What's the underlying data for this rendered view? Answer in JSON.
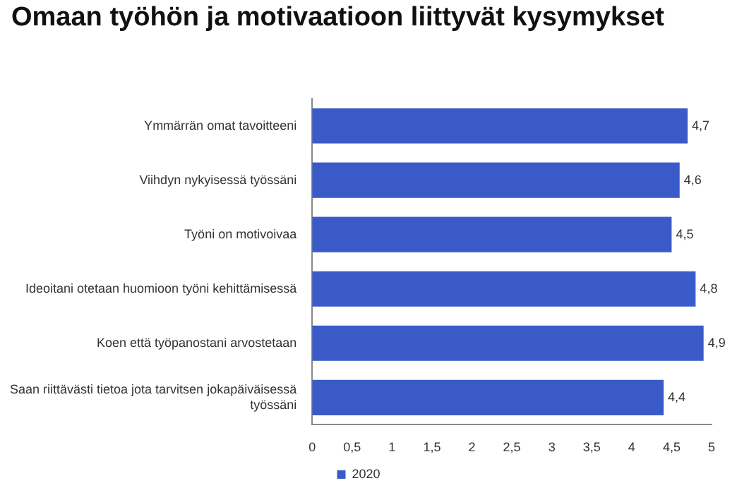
{
  "chart_data": {
    "type": "bar",
    "orientation": "horizontal",
    "title": "Omaan työhön ja motivaatioon liittyvät kysymykset",
    "categories": [
      "Ymmärrän omat tavoitteeni",
      "Viihdyn nykyisessä työssäni",
      "Työni on motivoivaa",
      "Ideoitani otetaan huomioon työni kehittämisessä",
      "Koen että työpanostani arvostetaan",
      "Saan riittävästi tietoa jota tarvitsen jokapäiväisessä työssäni"
    ],
    "series": [
      {
        "name": "2020",
        "color": "#3a5bc7",
        "values": [
          4.7,
          4.6,
          4.5,
          4.8,
          4.9,
          4.4
        ],
        "value_labels": [
          "4,7",
          "4,6",
          "4,5",
          "4,8",
          "4,9",
          "4,4"
        ]
      }
    ],
    "xlim": [
      0,
      5
    ],
    "xticks": [
      0,
      {
        "value": 0.5,
        "label": "0,5"
      },
      1,
      {
        "value": 1.5,
        "label": "1,5"
      },
      2,
      {
        "value": 2.5,
        "label": "2,5"
      },
      3,
      {
        "value": 3.5,
        "label": "3,5"
      },
      4,
      {
        "value": 4.5,
        "label": "4,5"
      },
      5
    ],
    "grid": false,
    "legend": "bottom"
  }
}
